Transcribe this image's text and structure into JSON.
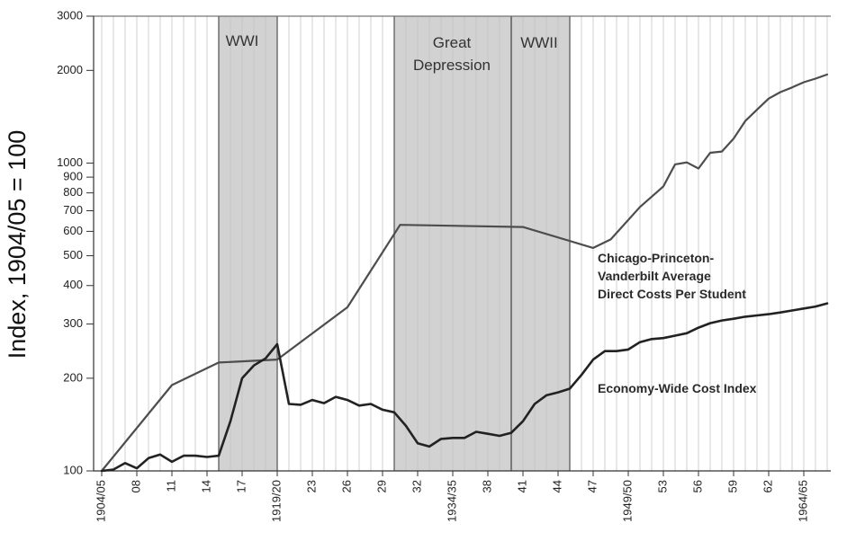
{
  "chart_data": {
    "type": "line",
    "ylabel": "Index, 1904/05 = 100",
    "y_scale": "log",
    "ylim": [
      100,
      3000
    ],
    "y_ticks": [
      100,
      200,
      300,
      400,
      500,
      600,
      700,
      800,
      900,
      1000,
      2000,
      3000
    ],
    "y_tick_labels": [
      "100",
      "200",
      "300",
      "400",
      "500",
      "600",
      "700",
      "800",
      "900",
      "1000",
      "2000",
      "3000"
    ],
    "xlim": [
      1904,
      1967
    ],
    "x_ticks": [
      {
        "year": 1904,
        "label": "1904/05"
      },
      {
        "year": 1907,
        "label": "08"
      },
      {
        "year": 1910,
        "label": "11"
      },
      {
        "year": 1913,
        "label": "14"
      },
      {
        "year": 1916,
        "label": "17"
      },
      {
        "year": 1919,
        "label": "1919/20"
      },
      {
        "year": 1922,
        "label": "23"
      },
      {
        "year": 1925,
        "label": "26"
      },
      {
        "year": 1928,
        "label": "29"
      },
      {
        "year": 1931,
        "label": "32"
      },
      {
        "year": 1934,
        "label": "1934/35"
      },
      {
        "year": 1937,
        "label": "38"
      },
      {
        "year": 1940,
        "label": "41"
      },
      {
        "year": 1943,
        "label": "44"
      },
      {
        "year": 1946,
        "label": "47"
      },
      {
        "year": 1949,
        "label": "1949/50"
      },
      {
        "year": 1952,
        "label": "53"
      },
      {
        "year": 1955,
        "label": "56"
      },
      {
        "year": 1958,
        "label": "59"
      },
      {
        "year": 1961,
        "label": "62"
      },
      {
        "year": 1964,
        "label": "1964/65"
      }
    ],
    "grid": true,
    "bands": [
      {
        "label": "WWI",
        "start": 1914,
        "end": 1919
      },
      {
        "label": "Great Depression",
        "start": 1929,
        "end": 1939
      },
      {
        "label": "WWII",
        "start": 1939,
        "end": 1944
      }
    ],
    "series": [
      {
        "name": "Chicago-Princeton-Vanderbilt Average Direct Costs Per Student",
        "label_lines": [
          "Chicago-Princeton-",
          "Vanderbilt Average",
          "Direct Costs Per Student"
        ],
        "x": [
          1904,
          1910,
          1914,
          1919,
          1925,
          1929.5,
          1940,
          1946,
          1947.5,
          1950,
          1952,
          1953,
          1954,
          1955,
          1956,
          1957,
          1958,
          1959,
          1960,
          1961,
          1962,
          1963,
          1964,
          1965,
          1966
        ],
        "y": [
          100,
          190,
          225,
          230,
          340,
          630,
          620,
          530,
          565,
          720,
          840,
          990,
          1005,
          960,
          1080,
          1090,
          1200,
          1370,
          1490,
          1620,
          1700,
          1760,
          1830,
          1880,
          1940
        ]
      },
      {
        "name": "Economy-Wide Cost Index",
        "label_lines": [
          "Economy-Wide Cost Index"
        ],
        "x": [
          1904,
          1905,
          1906,
          1907,
          1908,
          1909,
          1910,
          1911,
          1912,
          1913,
          1914,
          1915,
          1916,
          1917,
          1918,
          1919,
          1920,
          1921,
          1922,
          1923,
          1924,
          1925,
          1926,
          1927,
          1928,
          1929,
          1930,
          1931,
          1932,
          1933,
          1934,
          1935,
          1936,
          1937,
          1938,
          1939,
          1940,
          1941,
          1942,
          1943,
          1944,
          1945,
          1946,
          1947,
          1948,
          1949,
          1950,
          1951,
          1952,
          1953,
          1954,
          1955,
          1956,
          1957,
          1958,
          1959,
          1960,
          1961,
          1962,
          1963,
          1964,
          1965,
          1966
        ],
        "y": [
          100,
          101,
          106,
          102,
          110,
          113,
          107,
          112,
          112,
          111,
          112,
          145,
          200,
          220,
          232,
          258,
          165,
          164,
          170,
          166,
          174,
          170,
          163,
          165,
          158,
          155,
          140,
          123,
          120,
          127,
          128,
          128,
          134,
          132,
          130,
          133,
          145,
          165,
          176,
          180,
          185,
          205,
          230,
          245,
          245,
          248,
          262,
          268,
          270,
          275,
          280,
          292,
          302,
          308,
          312,
          317,
          320,
          323,
          327,
          332,
          337,
          342,
          350
        ]
      }
    ]
  }
}
